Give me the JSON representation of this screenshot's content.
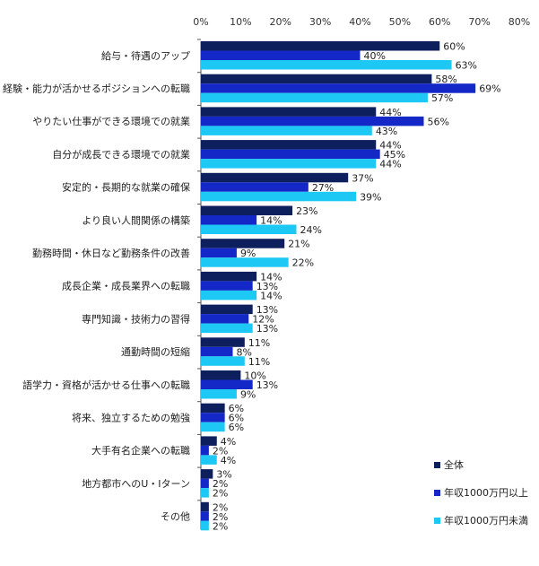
{
  "chart_data": {
    "type": "bar",
    "orientation": "horizontal",
    "categories": [
      "給与・待遇のアップ",
      "経験・能力が活かせるポジションへの転職",
      "やりたい仕事ができる環境での就業",
      "自分が成長できる環境での就業",
      "安定的・長期的な就業の確保",
      "より良い人間関係の構築",
      "勤務時間・休日など勤務条件の改善",
      "成長企業・成長業界への転職",
      "専門知識・技術力の習得",
      "通勤時間の短縮",
      "語学力・資格が活かせる仕事への転職",
      "将来、独立するための勉強",
      "大手有名企業への転職",
      "地方都市へのU・Iターン",
      "その他"
    ],
    "series": [
      {
        "name": "全体",
        "color": "#0d1f5c",
        "values": [
          60,
          58,
          44,
          44,
          37,
          23,
          21,
          14,
          13,
          11,
          10,
          6,
          4,
          3,
          2
        ]
      },
      {
        "name": "年収1000万円以上",
        "color": "#1428c8",
        "values": [
          40,
          69,
          56,
          45,
          27,
          14,
          9,
          13,
          12,
          8,
          13,
          6,
          2,
          2,
          2
        ]
      },
      {
        "name": "年収1000万円未満",
        "color": "#1ec8f5",
        "values": [
          63,
          57,
          43,
          44,
          39,
          24,
          22,
          14,
          13,
          11,
          9,
          6,
          4,
          2,
          2
        ]
      }
    ],
    "value_suffix": "%",
    "xlim": [
      0,
      80
    ],
    "xticks": [
      "0%",
      "10%",
      "20%",
      "30%",
      "40%",
      "50%",
      "60%",
      "70%",
      "80%"
    ],
    "grid": false,
    "legend_position": "bottom-right"
  }
}
